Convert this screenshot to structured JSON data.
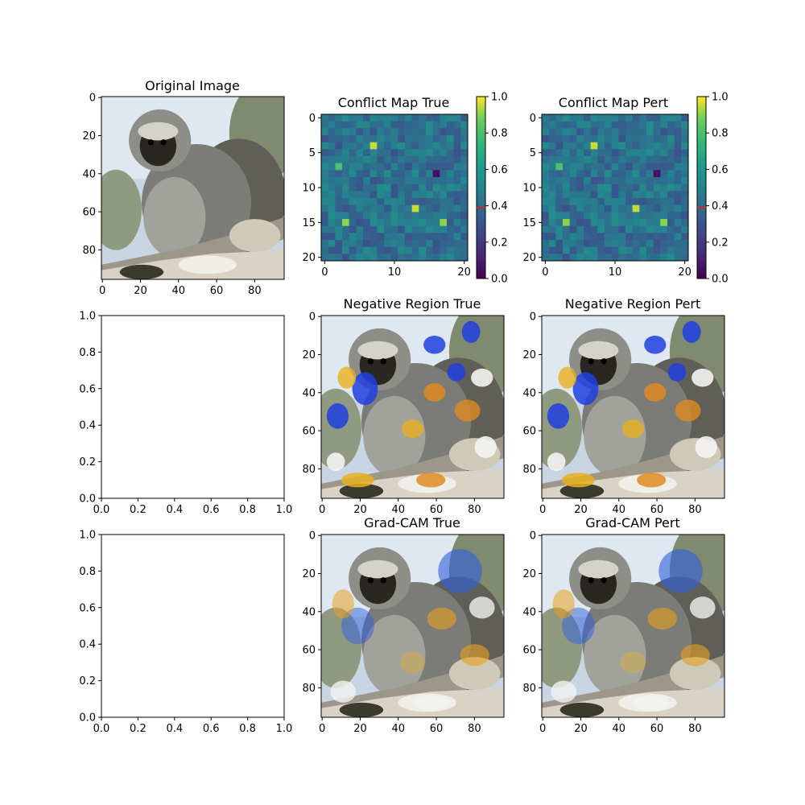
{
  "chart_data": [
    {
      "id": "orig",
      "type": "image",
      "title": "Original Image",
      "xticks": [
        0,
        20,
        40,
        60,
        80
      ],
      "yticks": [
        0,
        20,
        40,
        60,
        80
      ],
      "xlim": [
        -0.5,
        95.5
      ],
      "ylim": [
        95.5,
        -0.5
      ],
      "image_description": "vervet monkey sitting on a tree branch",
      "grid": false
    },
    {
      "id": "cmt",
      "type": "heatmap",
      "title": "Conflict Map True",
      "xticks": [
        0,
        10,
        20
      ],
      "yticks": [
        0,
        5,
        10,
        15,
        20
      ],
      "xlim": [
        -0.5,
        20.5
      ],
      "ylim": [
        20.5,
        -0.5
      ],
      "grid_size": [
        21,
        21
      ],
      "value_range": [
        0,
        1
      ],
      "colormap": "viridis",
      "highlights": [
        {
          "row": 4,
          "col": 7,
          "value": 0.95
        },
        {
          "row": 13,
          "col": 13,
          "value": 0.95
        },
        {
          "row": 15,
          "col": 3,
          "value": 0.9
        },
        {
          "row": 15,
          "col": 17,
          "value": 0.9
        },
        {
          "row": 7,
          "col": 2,
          "value": 0.8
        },
        {
          "row": 8,
          "col": 16,
          "value": 0.05
        }
      ],
      "colorbar": {
        "ticks": [
          0.0,
          0.2,
          0.4,
          0.6,
          0.8,
          1.0
        ],
        "marker": 0.39,
        "marker_color": "#d62728"
      }
    },
    {
      "id": "cmp",
      "type": "heatmap",
      "title": "Conflict Map Pert",
      "xticks": [
        0,
        10,
        20
      ],
      "yticks": [
        0,
        5,
        10,
        15,
        20
      ],
      "xlim": [
        -0.5,
        20.5
      ],
      "ylim": [
        20.5,
        -0.5
      ],
      "grid_size": [
        21,
        21
      ],
      "value_range": [
        0,
        1
      ],
      "colormap": "viridis",
      "highlights": [
        {
          "row": 4,
          "col": 7,
          "value": 0.95
        },
        {
          "row": 13,
          "col": 13,
          "value": 0.95
        },
        {
          "row": 15,
          "col": 3,
          "value": 0.9
        },
        {
          "row": 15,
          "col": 17,
          "value": 0.9
        },
        {
          "row": 7,
          "col": 2,
          "value": 0.8
        },
        {
          "row": 8,
          "col": 16,
          "value": 0.05
        }
      ],
      "colorbar": {
        "ticks": [
          0.0,
          0.2,
          0.4,
          0.6,
          0.8,
          1.0
        ],
        "marker": 0.39,
        "marker_color": "#d62728"
      }
    },
    {
      "id": "e1",
      "type": "empty",
      "title": "",
      "xticks": [
        0.0,
        0.2,
        0.4,
        0.6,
        0.8,
        1.0
      ],
      "yticks": [
        0.0,
        0.2,
        0.4,
        0.6,
        0.8,
        1.0
      ],
      "xlim": [
        0,
        1
      ],
      "ylim": [
        0,
        1
      ]
    },
    {
      "id": "nrt",
      "type": "image",
      "title": "Negative Region True",
      "xticks": [
        0,
        20,
        40,
        60,
        80
      ],
      "yticks": [
        0,
        20,
        40,
        60,
        80
      ],
      "xlim": [
        -0.5,
        95.5
      ],
      "ylim": [
        95.5,
        -0.5
      ],
      "image_description": "monkey image with blue/yellow/orange negative-region overlay"
    },
    {
      "id": "nrp",
      "type": "image",
      "title": "Negative Region Pert",
      "xticks": [
        0,
        20,
        40,
        60,
        80
      ],
      "yticks": [
        0,
        20,
        40,
        60,
        80
      ],
      "xlim": [
        -0.5,
        95.5
      ],
      "ylim": [
        95.5,
        -0.5
      ],
      "image_description": "monkey image with blue/yellow/orange negative-region overlay"
    },
    {
      "id": "e2",
      "type": "empty",
      "title": "",
      "xticks": [
        0.0,
        0.2,
        0.4,
        0.6,
        0.8,
        1.0
      ],
      "yticks": [
        0.0,
        0.2,
        0.4,
        0.6,
        0.8,
        1.0
      ],
      "xlim": [
        0,
        1
      ],
      "ylim": [
        0,
        1
      ]
    },
    {
      "id": "gct",
      "type": "image",
      "title": "Grad-CAM True",
      "xticks": [
        0,
        20,
        40,
        60,
        80
      ],
      "yticks": [
        0,
        20,
        40,
        60,
        80
      ],
      "xlim": [
        -0.5,
        95.5
      ],
      "ylim": [
        95.5,
        -0.5
      ],
      "image_description": "monkey image with Grad-CAM overlay"
    },
    {
      "id": "gcp",
      "type": "image",
      "title": "Grad-CAM Pert",
      "xticks": [
        0,
        20,
        40,
        60,
        80
      ],
      "yticks": [
        0,
        20,
        40,
        60,
        80
      ],
      "xlim": [
        -0.5,
        95.5
      ],
      "ylim": [
        95.5,
        -0.5
      ],
      "image_description": "monkey image with Grad-CAM overlay"
    }
  ]
}
